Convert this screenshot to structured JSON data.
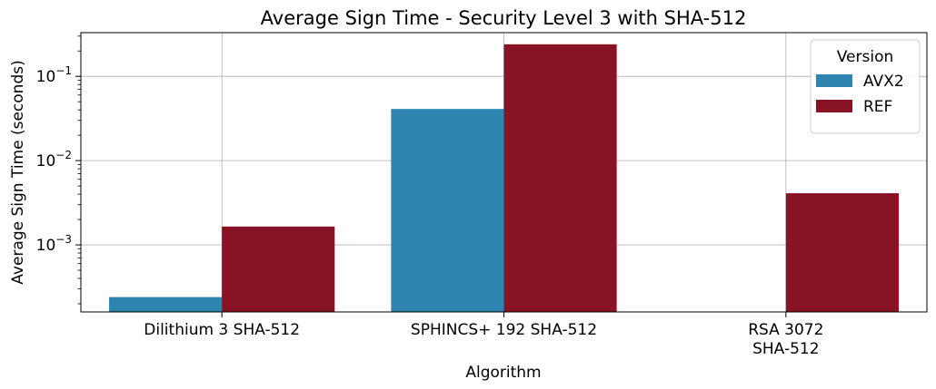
{
  "chart_data": {
    "type": "bar",
    "title": "Average Sign Time - Security Level 3 with SHA-512",
    "xlabel": "Algorithm",
    "ylabel": "Average Sign Time (seconds)",
    "yscale": "log",
    "ylim": [
      0.00016,
      0.33
    ],
    "yticks": [
      {
        "value": 0.001,
        "base": "10",
        "exp": "−3"
      },
      {
        "value": 0.01,
        "base": "10",
        "exp": "−2"
      },
      {
        "value": 0.1,
        "base": "10",
        "exp": "−1"
      }
    ],
    "categories": [
      [
        "Dilithium 3 SHA-512"
      ],
      [
        "SPHINCS+ 192 SHA-512"
      ],
      [
        "RSA 3072",
        "SHA-512"
      ]
    ],
    "series": [
      {
        "name": "AVX2",
        "color": "#2e86b0",
        "values": [
          0.00024,
          0.041,
          null
        ]
      },
      {
        "name": "REF",
        "color": "#881324",
        "values": [
          0.00165,
          0.24,
          0.0041
        ]
      }
    ],
    "grid": true,
    "legend": {
      "title": "Version",
      "placement": "top-right"
    }
  }
}
